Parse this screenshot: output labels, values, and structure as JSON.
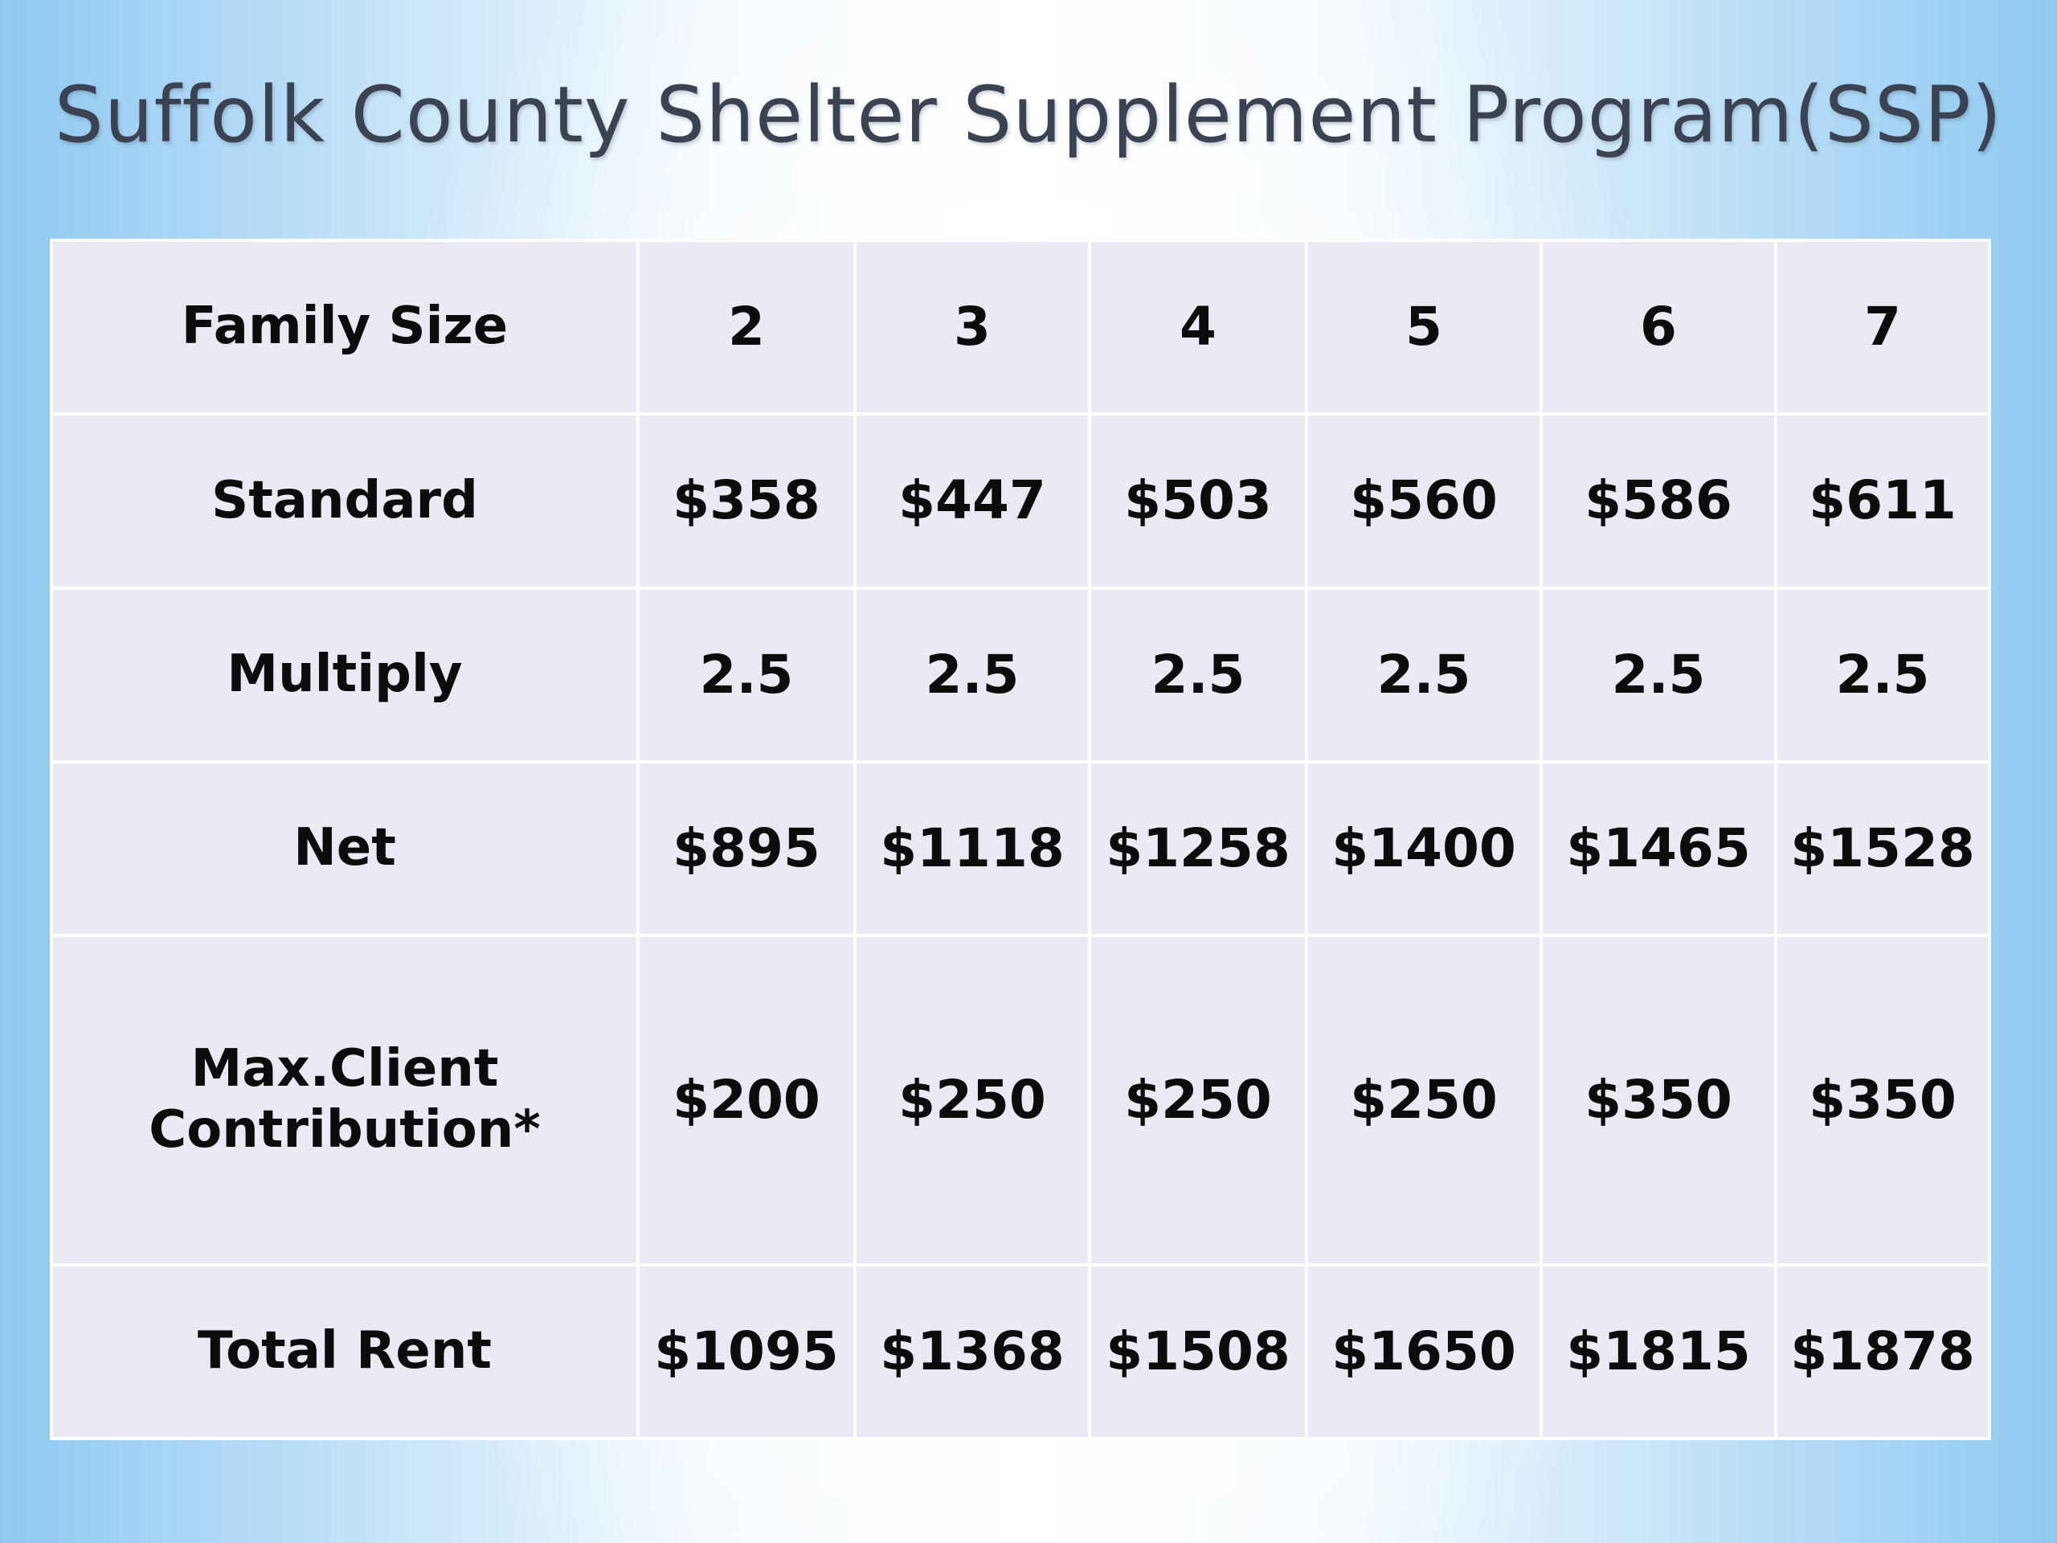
{
  "slide": {
    "title": "Suffolk County Shelter Supplement Program(SSP)"
  },
  "table": {
    "rows": [
      {
        "label": "Family Size",
        "values": [
          "2",
          "3",
          "4",
          "5",
          "6",
          "7"
        ]
      },
      {
        "label": "Standard",
        "values": [
          "$358",
          "$447",
          "$503",
          "$560",
          "$586",
          "$611"
        ]
      },
      {
        "label": "Multiply",
        "values": [
          "2.5",
          "2.5",
          "2.5",
          "2.5",
          "2.5",
          "2.5"
        ]
      },
      {
        "label": "Net",
        "values": [
          "$895",
          "$1118",
          "$1258",
          "$1400",
          "$1465",
          "$1528"
        ]
      },
      {
        "label_line1": "Max.Client",
        "label_line2": "Contribution*",
        "values": [
          "$200",
          "$250",
          "$250",
          "$250",
          "$350",
          "$350"
        ]
      },
      {
        "label": "Total Rent",
        "values": [
          "$1095",
          "$1368",
          "$1508",
          "$1650",
          "$1815",
          "$1878"
        ]
      }
    ]
  },
  "colors": {
    "cell_background": "#ebeaf4",
    "grid_lines": "#ffffff",
    "title_text": "#3b4352",
    "cell_text": "#0c0c0c",
    "background_edge_blue": "#8fc9f1"
  }
}
